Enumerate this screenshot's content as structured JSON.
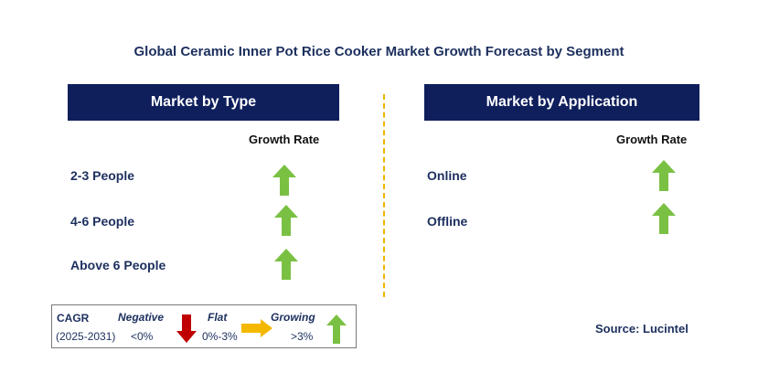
{
  "title": "Global Ceramic Inner Pot Rice Cooker Market Growth Forecast by Segment",
  "left_panel": {
    "header": "Market by Type",
    "column_label": "Growth Rate",
    "rows": [
      {
        "label": "2-3 People",
        "trend": "growing"
      },
      {
        "label": "4-6 People",
        "trend": "growing"
      },
      {
        "label": "Above 6 People",
        "trend": "growing"
      }
    ]
  },
  "right_panel": {
    "header": "Market by Application",
    "column_label": "Growth Rate",
    "rows": [
      {
        "label": "Online",
        "trend": "growing"
      },
      {
        "label": "Offline",
        "trend": "growing"
      }
    ]
  },
  "legend": {
    "cagr_label": "CAGR",
    "period": "(2025-2031)",
    "negative_label": "Negative",
    "negative_range": "<0%",
    "flat_label": "Flat",
    "flat_range": "0%-3%",
    "growing_label": "Growing",
    "growing_range": ">3%"
  },
  "source": "Source: Lucintel",
  "colors": {
    "header_bg": "#0f1f5c",
    "growing_arrow": "#7ac143",
    "negative_arrow": "#c00000",
    "flat_arrow": "#f5b800",
    "divider": "#f0b400"
  },
  "icons": {
    "growing": "arrow-up-icon",
    "negative": "arrow-down-icon",
    "flat": "arrow-right-icon"
  }
}
